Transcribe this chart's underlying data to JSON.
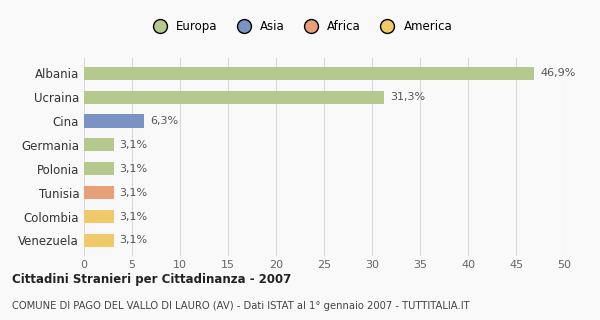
{
  "categories": [
    "Albania",
    "Ucraina",
    "Cina",
    "Germania",
    "Polonia",
    "Tunisia",
    "Colombia",
    "Venezuela"
  ],
  "values": [
    46.9,
    31.3,
    6.3,
    3.1,
    3.1,
    3.1,
    3.1,
    3.1
  ],
  "labels": [
    "46,9%",
    "31,3%",
    "6,3%",
    "3,1%",
    "3,1%",
    "3,1%",
    "3,1%",
    "3,1%"
  ],
  "colors": [
    "#b5c98e",
    "#b5c98e",
    "#7b93c4",
    "#b5c98e",
    "#b5c98e",
    "#e8a07a",
    "#f0c96a",
    "#f0c96a"
  ],
  "legend_labels": [
    "Europa",
    "Asia",
    "Africa",
    "America"
  ],
  "legend_colors": [
    "#b5c98e",
    "#7b93c4",
    "#e8a07a",
    "#f0c96a"
  ],
  "xlim": [
    0,
    50
  ],
  "xticks": [
    0,
    5,
    10,
    15,
    20,
    25,
    30,
    35,
    40,
    45,
    50
  ],
  "title": "Cittadini Stranieri per Cittadinanza - 2007",
  "subtitle": "COMUNE DI PAGO DEL VALLO DI LAURO (AV) - Dati ISTAT al 1° gennaio 2007 - TUTTITALIA.IT",
  "bg_color": "#f9f9f9",
  "grid_color": "#d8d8d8"
}
